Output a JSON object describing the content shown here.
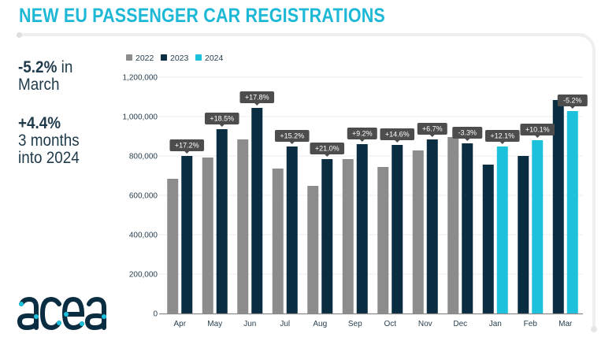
{
  "header": {
    "title": "NEW EU PASSENGER CAR REGISTRATIONS"
  },
  "kpis": [
    {
      "value": "-5.2%",
      "text_line1": " in",
      "text_line2": "March"
    },
    {
      "value": "+4.4%",
      "text_line1": "3 months",
      "text_line2": "into 2024"
    }
  ],
  "logo": {
    "text": "acea",
    "name": "acea-logo"
  },
  "colors": {
    "2022": "#8c8c8c",
    "2023": "#0b2d42",
    "2024": "#1ec1dc",
    "title": "#1db8d6",
    "label_box": "#4d4d4d"
  },
  "chart_data": {
    "type": "bar",
    "title": "New EU passenger car registrations",
    "xlabel": "",
    "ylabel": "",
    "ylim": [
      0,
      1200000
    ],
    "yticks": [
      0,
      200000,
      400000,
      600000,
      800000,
      1000000,
      1200000
    ],
    "ytick_labels": [
      "0",
      "200,000",
      "400,000",
      "600,000",
      "800,000",
      "1,000,000",
      "1,200,000"
    ],
    "grid": true,
    "legend": {
      "position": "top-left",
      "entries": [
        "2022",
        "2023",
        "2024"
      ]
    },
    "categories": [
      "Apr",
      "May",
      "Jun",
      "Jul",
      "Aug",
      "Sep",
      "Oct",
      "Nov",
      "Dec",
      "Jan",
      "Feb",
      "Mar"
    ],
    "groups": [
      {
        "category": "Apr",
        "bars": [
          {
            "series": "2022",
            "value": 684000
          },
          {
            "series": "2023",
            "value": 800000
          }
        ],
        "change_label": "+17.2%"
      },
      {
        "category": "May",
        "bars": [
          {
            "series": "2022",
            "value": 792000
          },
          {
            "series": "2023",
            "value": 936000
          }
        ],
        "change_label": "+18.5%"
      },
      {
        "category": "Jun",
        "bars": [
          {
            "series": "2022",
            "value": 884000
          },
          {
            "series": "2023",
            "value": 1044000
          }
        ],
        "change_label": "+17.8%"
      },
      {
        "category": "Jul",
        "bars": [
          {
            "series": "2022",
            "value": 736000
          },
          {
            "series": "2023",
            "value": 848000
          }
        ],
        "change_label": "+15.2%"
      },
      {
        "category": "Aug",
        "bars": [
          {
            "series": "2022",
            "value": 648000
          },
          {
            "series": "2023",
            "value": 784000
          }
        ],
        "change_label": "+21.0%"
      },
      {
        "category": "Sep",
        "bars": [
          {
            "series": "2022",
            "value": 784000
          },
          {
            "series": "2023",
            "value": 860000
          }
        ],
        "change_label": "+9.2%"
      },
      {
        "category": "Oct",
        "bars": [
          {
            "series": "2022",
            "value": 744000
          },
          {
            "series": "2023",
            "value": 856000
          }
        ],
        "change_label": "+14.6%"
      },
      {
        "category": "Nov",
        "bars": [
          {
            "series": "2022",
            "value": 828000
          },
          {
            "series": "2023",
            "value": 884000
          }
        ],
        "change_label": "+6.7%"
      },
      {
        "category": "Dec",
        "bars": [
          {
            "series": "2022",
            "value": 896000
          },
          {
            "series": "2023",
            "value": 864000
          }
        ],
        "change_label": "-3.3%"
      },
      {
        "category": "Jan",
        "bars": [
          {
            "series": "2023",
            "value": 756000
          },
          {
            "series": "2024",
            "value": 848000
          }
        ],
        "change_label": "+12.1%"
      },
      {
        "category": "Feb",
        "bars": [
          {
            "series": "2023",
            "value": 800000
          },
          {
            "series": "2024",
            "value": 880000
          }
        ],
        "change_label": "+10.1%"
      },
      {
        "category": "Mar",
        "bars": [
          {
            "series": "2023",
            "value": 1084000
          },
          {
            "series": "2024",
            "value": 1028000
          }
        ],
        "change_label": "-5.2%"
      }
    ]
  }
}
